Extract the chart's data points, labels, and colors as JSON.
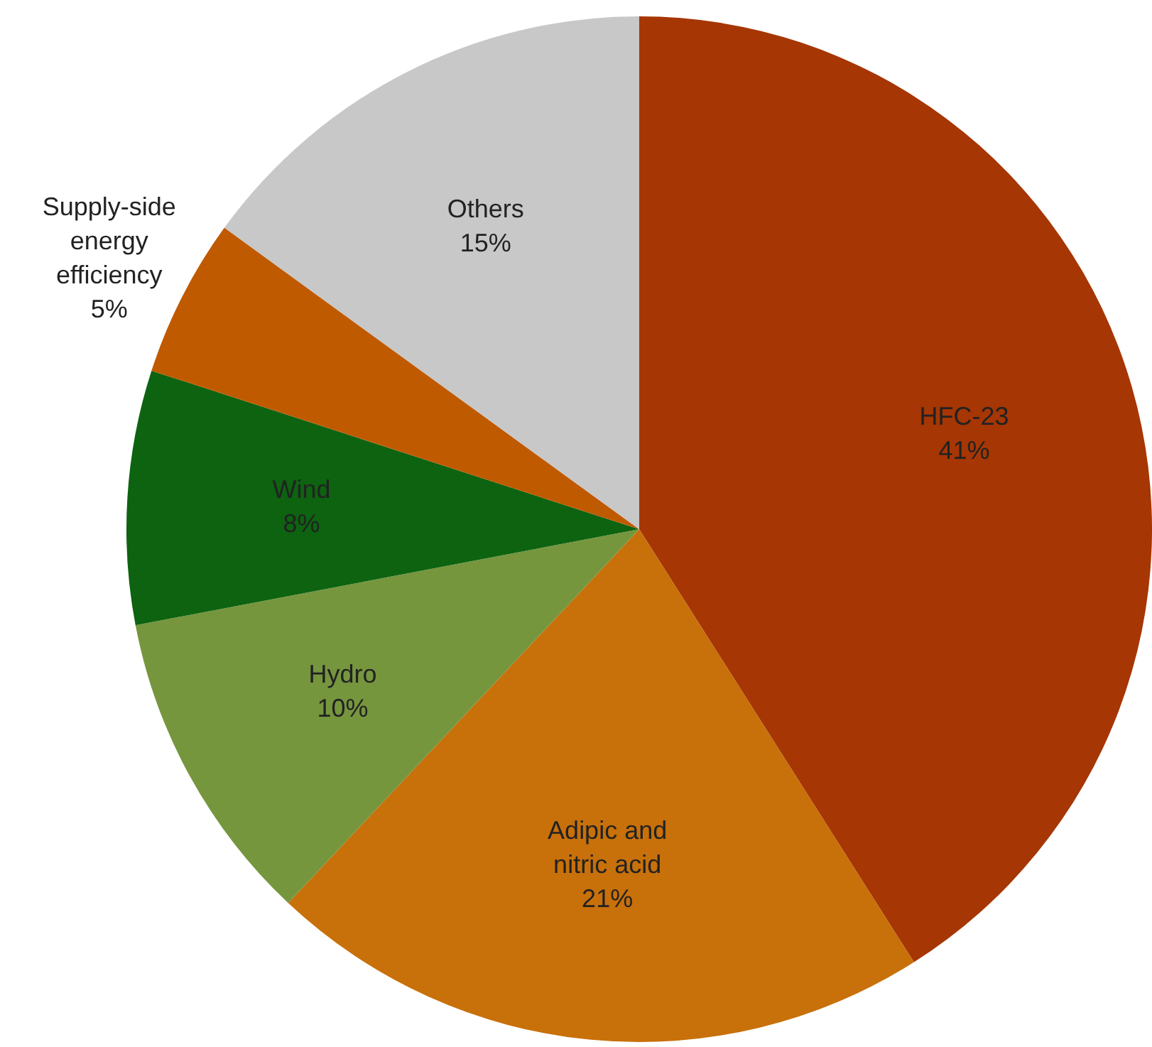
{
  "chart_data": {
    "type": "pie",
    "categories": [
      "HFC-23",
      "Adipic and nitric acid",
      "Hydro",
      "Wind",
      "Supply-side energy efficiency",
      "Others"
    ],
    "values": [
      41,
      21,
      10,
      8,
      5,
      15
    ],
    "colors": [
      "#a63603",
      "#c8700a",
      "#76963e",
      "#0d6310",
      "#c05a00",
      "#c8c8c8"
    ],
    "value_labels": [
      "41%",
      "21%",
      "10%",
      "8%",
      "5%",
      "15%"
    ],
    "legend": false
  }
}
